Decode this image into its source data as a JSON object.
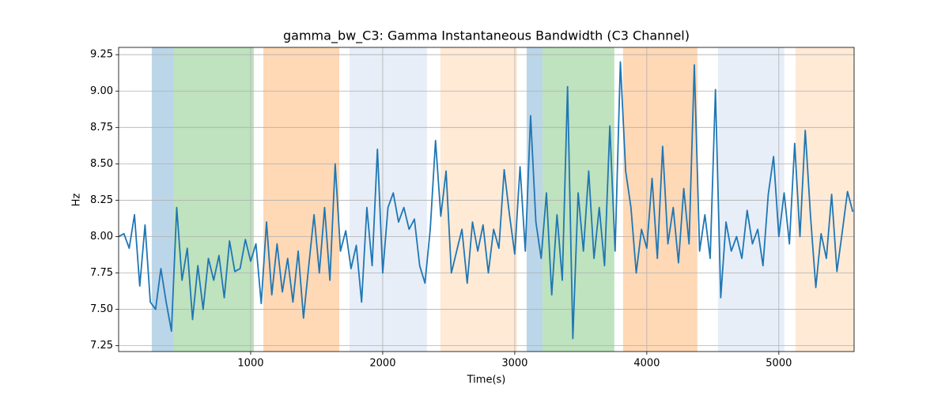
{
  "chart_data": {
    "type": "line",
    "title": "gamma_bw_C3: Gamma Instantaneous Bandwidth (C3 Channel)",
    "xlabel": "Time(s)",
    "ylabel": "Hz",
    "x": [
      0,
      40,
      80,
      120,
      160,
      200,
      240,
      280,
      320,
      360,
      400,
      440,
      480,
      520,
      560,
      600,
      640,
      680,
      720,
      760,
      800,
      840,
      880,
      920,
      960,
      1000,
      1040,
      1080,
      1120,
      1160,
      1200,
      1240,
      1280,
      1320,
      1360,
      1400,
      1440,
      1480,
      1520,
      1560,
      1600,
      1640,
      1680,
      1720,
      1760,
      1800,
      1840,
      1880,
      1920,
      1960,
      2000,
      2040,
      2080,
      2120,
      2160,
      2200,
      2240,
      2280,
      2320,
      2360,
      2400,
      2440,
      2480,
      2520,
      2560,
      2600,
      2640,
      2680,
      2720,
      2760,
      2800,
      2840,
      2880,
      2920,
      2960,
      3000,
      3040,
      3080,
      3120,
      3160,
      3200,
      3240,
      3280,
      3320,
      3360,
      3400,
      3440,
      3480,
      3520,
      3560,
      3600,
      3640,
      3680,
      3720,
      3760,
      3800,
      3840,
      3880,
      3920,
      3960,
      4000,
      4040,
      4080,
      4120,
      4160,
      4200,
      4240,
      4280,
      4320,
      4360,
      4400,
      4440,
      4480,
      4520,
      4560,
      4600,
      4640,
      4680,
      4720,
      4760,
      4800,
      4840,
      4880,
      4920,
      4960,
      5000,
      5040,
      5080,
      5120,
      5160,
      5200,
      5240,
      5280,
      5320,
      5360,
      5400,
      5440,
      5480,
      5520,
      5560
    ],
    "values": [
      8.0,
      8.02,
      7.92,
      8.15,
      7.66,
      8.08,
      7.55,
      7.5,
      7.78,
      7.55,
      7.35,
      8.2,
      7.7,
      7.92,
      7.43,
      7.8,
      7.5,
      7.85,
      7.7,
      7.87,
      7.58,
      7.97,
      7.76,
      7.78,
      7.98,
      7.83,
      7.95,
      7.54,
      8.1,
      7.6,
      7.95,
      7.62,
      7.85,
      7.55,
      7.9,
      7.44,
      7.8,
      8.15,
      7.75,
      8.2,
      7.7,
      8.5,
      7.9,
      8.04,
      7.78,
      7.94,
      7.55,
      8.2,
      7.8,
      8.6,
      7.75,
      8.2,
      8.3,
      8.1,
      8.2,
      8.05,
      8.12,
      7.8,
      7.68,
      8.05,
      8.66,
      8.14,
      8.45,
      7.75,
      7.9,
      8.05,
      7.68,
      8.1,
      7.9,
      8.08,
      7.75,
      8.05,
      7.92,
      8.46,
      8.15,
      7.88,
      8.48,
      7.9,
      8.83,
      8.1,
      7.85,
      8.3,
      7.6,
      8.15,
      7.7,
      9.03,
      7.3,
      8.3,
      7.9,
      8.45,
      7.85,
      8.2,
      7.8,
      8.76,
      7.9,
      9.2,
      8.45,
      8.2,
      7.75,
      8.05,
      7.92,
      8.4,
      7.85,
      8.62,
      7.95,
      8.2,
      7.82,
      8.33,
      7.95,
      9.18,
      7.9,
      8.15,
      7.85,
      9.01,
      7.58,
      8.1,
      7.9,
      8.0,
      7.85,
      8.18,
      7.95,
      8.05,
      7.8,
      8.29,
      8.55,
      8.0,
      8.3,
      7.95,
      8.64,
      8.0,
      8.73,
      8.14,
      7.65,
      8.02,
      7.85,
      8.29,
      7.76,
      8.03,
      8.31,
      8.17
    ],
    "color": "#1f77b4",
    "spans": [
      {
        "start": 251,
        "end": 419,
        "color": "#1f77b4"
      },
      {
        "start": 419,
        "end": 1024,
        "color": "#2ca02c"
      },
      {
        "start": 1096,
        "end": 1671,
        "color": "#ff7f0e"
      },
      {
        "start": 1749,
        "end": 2335,
        "color": "#aec7e8"
      },
      {
        "start": 2437,
        "end": 3018,
        "color": "#ffbb78"
      },
      {
        "start": 3090,
        "end": 3210,
        "color": "#1f77b4"
      },
      {
        "start": 3210,
        "end": 3754,
        "color": "#2ca02c"
      },
      {
        "start": 3820,
        "end": 4383,
        "color": "#ff7f0e"
      },
      {
        "start": 4539,
        "end": 5042,
        "color": "#aec7e8"
      },
      {
        "start": 5126,
        "end": 5570,
        "color": "#ffbb78"
      }
    ],
    "xlim": [
      0,
      5570
    ],
    "ylim": [
      7.21,
      9.3
    ],
    "xticks": [
      1000,
      2000,
      3000,
      4000,
      5000
    ],
    "yticks": [
      7.25,
      {
        "value": 7.5,
        "label": "7.50"
      },
      7.75,
      {
        "value": 8.0,
        "label": "8.00"
      },
      8.25,
      {
        "value": 8.5,
        "label": "8.50"
      },
      8.75,
      {
        "value": 9.0,
        "label": "9.00"
      },
      9.25
    ],
    "grid": true
  }
}
